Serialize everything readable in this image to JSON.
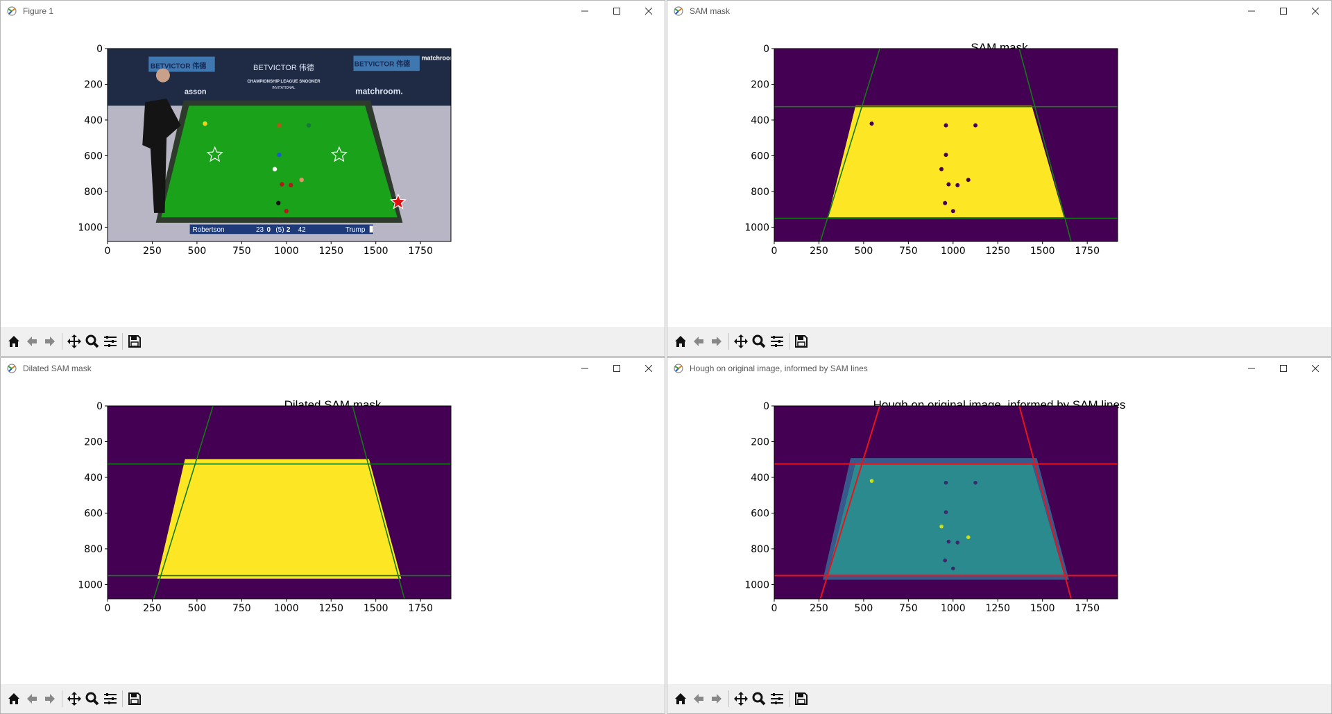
{
  "windows": [
    {
      "title": "Figure 1",
      "plot_title": "",
      "kind": "photo"
    },
    {
      "title": "SAM mask",
      "plot_title": "SAM mask",
      "kind": "mask"
    },
    {
      "title": "Dilated SAM mask",
      "plot_title": "Dilated SAM mask",
      "kind": "dilated"
    },
    {
      "title": "Hough on original image, informed by SAM lines",
      "plot_title": "Hough on original image, informed by SAM lines",
      "kind": "hough"
    }
  ],
  "axes": {
    "x_ticks": [
      "0",
      "250",
      "500",
      "750",
      "1000",
      "1250",
      "1500",
      "1750"
    ],
    "y_ticks": [
      "0",
      "200",
      "400",
      "600",
      "800",
      "1000"
    ]
  },
  "photo": {
    "banner_left": "BETVICTOR 伟德",
    "banner_center_brand": "BETVICTOR 伟德",
    "banner_center_sub": "CHAMPIONSHIP LEAGUE SNOOKER",
    "banner_center_sub2": "INVITATIONAL",
    "banner_matchroom": "matchroom.",
    "banner_right": "BETVICTOR 伟德",
    "corner_logo": "matchroom",
    "sponsor_fragment": "asson",
    "score_player1": "Robertson",
    "score_p1_points": "23",
    "score_p1_frames": "0",
    "score_frames_total": "(5)",
    "score_p2_frames": "2",
    "score_p2_points": "42",
    "score_player2": "Trump"
  },
  "colors": {
    "mask_bg": "#440154",
    "mask_fg": "#fde725",
    "line_green": "#127a12",
    "line_red": "#e8141a",
    "felt": "#1aa31a",
    "felt_teal": "#2a8a8e"
  },
  "toolbar_icons": [
    "home-icon",
    "back-icon",
    "forward-icon",
    "pan-icon",
    "zoom-icon",
    "configure-icon",
    "save-icon"
  ]
}
